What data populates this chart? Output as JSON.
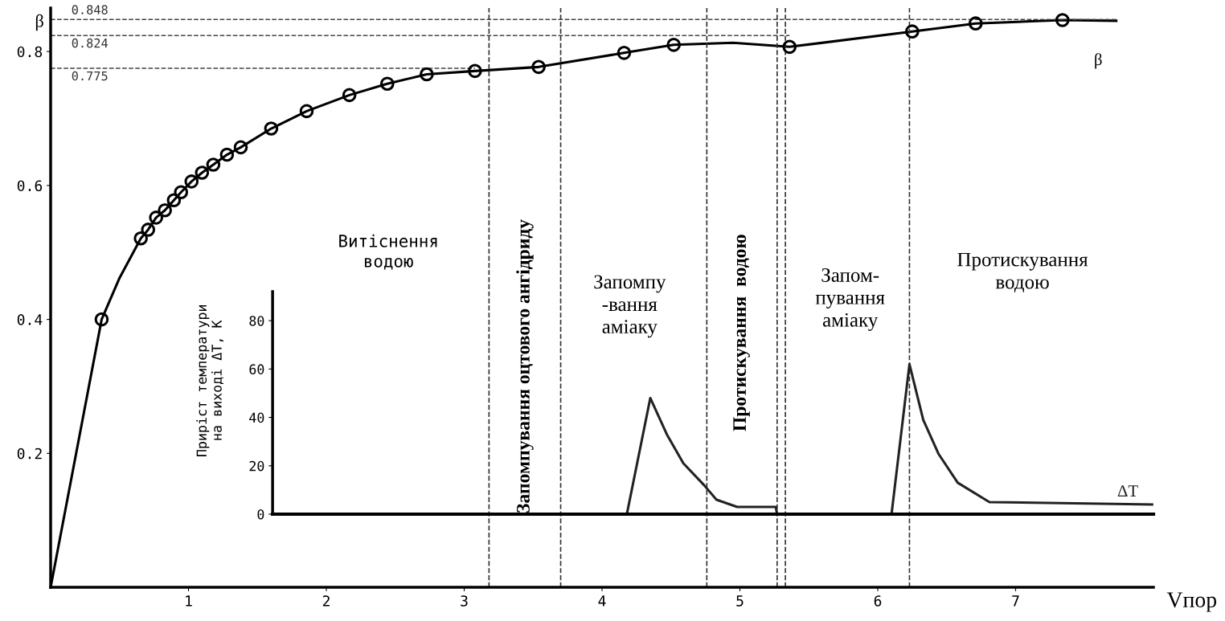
{
  "chart_data": {
    "type": "line",
    "xlabel": "Vпор",
    "ylabel": "β",
    "y2label": "Приріст температури\nна виході ΔT, К",
    "xlim": [
      0,
      8
    ],
    "xticks": [
      1,
      2,
      3,
      4,
      5,
      6,
      7
    ],
    "ylim": [
      0,
      0.865
    ],
    "yticks": [
      0.2,
      0.4,
      0.6,
      0.8
    ],
    "y2lim": [
      0,
      92
    ],
    "y2ticks": [
      0,
      20,
      40,
      60,
      80
    ],
    "legend": false,
    "line_style": "solid",
    "series": [
      {
        "name": "β",
        "type": "line",
        "color": "#000000",
        "x": [
          0,
          0.37,
          0.5,
          0.654,
          0.707,
          0.765,
          0.829,
          0.894,
          0.946,
          1.022,
          1.098,
          1.18,
          1.279,
          1.379,
          1.6,
          1.857,
          2.167,
          2.442,
          2.728,
          3.078,
          3.54,
          4.16,
          4.52,
          4.95,
          5.36,
          6.25,
          6.71,
          7.34,
          7.73
        ],
        "values": [
          0,
          0.4,
          0.462,
          0.521,
          0.534,
          0.552,
          0.563,
          0.578,
          0.59,
          0.606,
          0.619,
          0.631,
          0.646,
          0.657,
          0.685,
          0.711,
          0.735,
          0.752,
          0.766,
          0.771,
          0.777,
          0.798,
          0.81,
          0.813,
          0.807,
          0.83,
          0.842,
          0.847,
          0.846
        ]
      },
      {
        "type": "scatter",
        "marker": "circle",
        "color": "#000000",
        "x": [
          0.37,
          0.654,
          0.707,
          0.765,
          0.829,
          0.894,
          0.946,
          1.022,
          1.098,
          1.18,
          1.279,
          1.379,
          1.6,
          1.857,
          2.167,
          2.442,
          2.728,
          3.078,
          3.54,
          4.16,
          4.52,
          5.36,
          6.25,
          6.71,
          7.34
        ],
        "values": [
          0.4,
          0.521,
          0.534,
          0.552,
          0.563,
          0.578,
          0.59,
          0.606,
          0.619,
          0.631,
          0.646,
          0.657,
          0.685,
          0.711,
          0.735,
          0.752,
          0.766,
          0.771,
          0.777,
          0.798,
          0.81,
          0.807,
          0.83,
          0.842,
          0.847
        ]
      },
      {
        "name": "ΔT",
        "type": "line",
        "axis": "y2",
        "color": "#222222",
        "x": [
          1.61,
          4.18,
          4.35,
          4.47,
          4.59,
          4.74,
          4.83,
          4.98,
          5.26,
          5.27,
          6.1,
          6.23,
          6.33,
          6.44,
          6.58,
          6.81,
          7.99
        ],
        "values": [
          0,
          0,
          48,
          33,
          21,
          12,
          6,
          3,
          3,
          0,
          0,
          62,
          39,
          25,
          13,
          5,
          4
        ]
      }
    ],
    "ref_lines": [
      {
        "axis": "y",
        "value": 0.848,
        "label": "0.848",
        "line_style": "dashed"
      },
      {
        "axis": "y",
        "value": 0.824,
        "label": "0.824",
        "line_style": "dashed"
      },
      {
        "axis": "y",
        "value": 0.775,
        "label": "0.775",
        "line_style": "dashed"
      },
      {
        "axis": "x",
        "value": 3.18,
        "line_style": "dashed"
      },
      {
        "axis": "x",
        "value": 3.7,
        "line_style": "dashed"
      },
      {
        "axis": "x",
        "value": 4.76,
        "line_style": "dashed"
      },
      {
        "axis": "x",
        "value": 5.27,
        "line_style": "dashed"
      },
      {
        "axis": "x",
        "value": 5.33,
        "line_style": "dashed"
      },
      {
        "axis": "x",
        "value": 6.23,
        "line_style": "dashed"
      }
    ],
    "annotations": [
      "Витіснення\nводою",
      "Запомпування оцтового ангідриду",
      "Запомпу\n-вання\nаміаку",
      "Протискування  водою",
      "Запом-\nпування\nаміаку",
      "Протискування\nводою"
    ]
  }
}
